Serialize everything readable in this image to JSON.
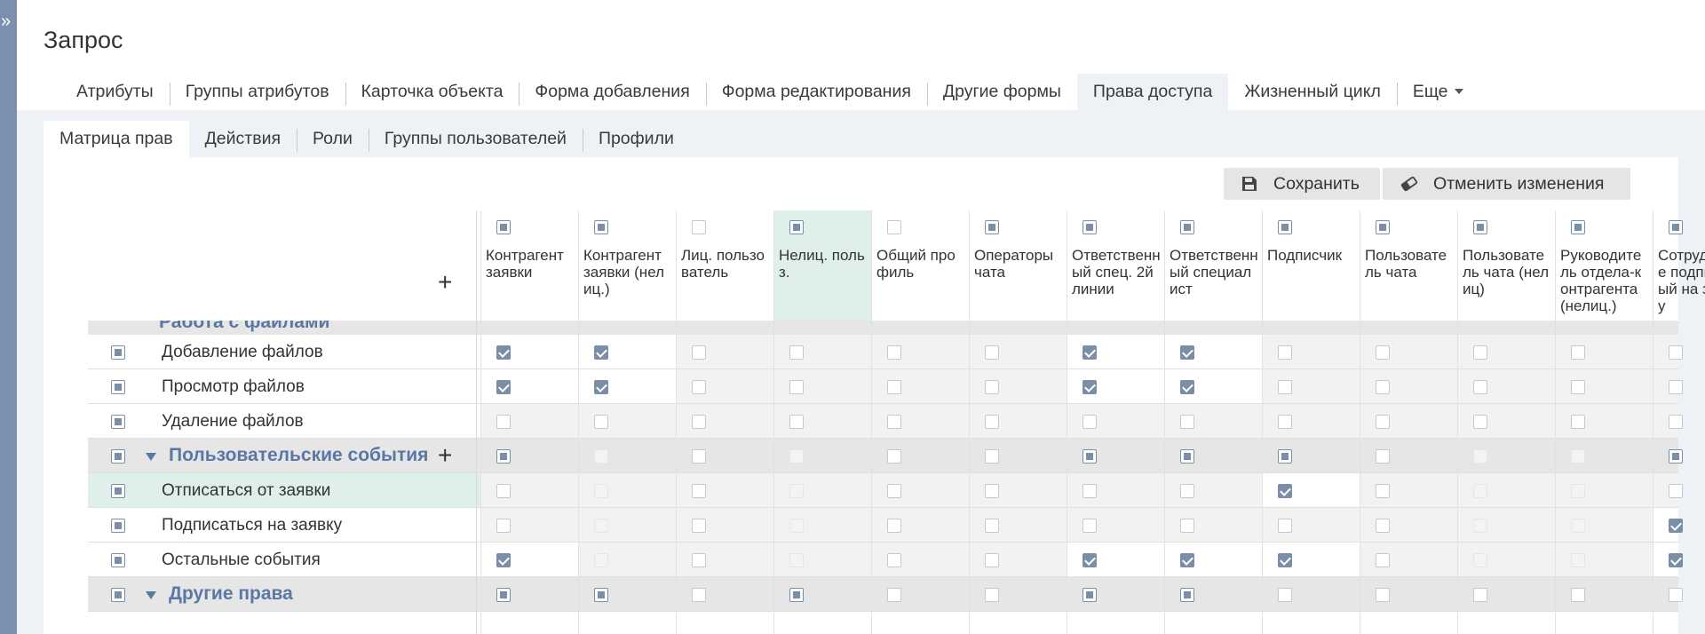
{
  "sidebar": {
    "expand_icon": "double-chevron-right-icon"
  },
  "page": {
    "title": "Запрос"
  },
  "tabs_main": {
    "items": [
      "Атрибуты",
      "Группы атрибутов",
      "Карточка объекта",
      "Форма добавления",
      "Форма редактирования",
      "Другие формы",
      "Права доступа",
      "Жизненный цикл",
      "Еще"
    ],
    "active": "Права доступа"
  },
  "tabs_sub": {
    "items": [
      "Матрица прав",
      "Действия",
      "Роли",
      "Группы пользователей",
      "Профили"
    ],
    "active": "Матрица прав"
  },
  "toolbar": {
    "save_label": "Сохранить",
    "save_icon": "floppy-disk-icon",
    "cancel_label": "Отменить изменения",
    "cancel_icon": "eraser-icon"
  },
  "matrix": {
    "add_icon": "+",
    "columns": [
      {
        "label": "Контрагент заявки",
        "header_state": "ind"
      },
      {
        "label": "Контрагент заявки (нелиц.)",
        "header_state": "ind"
      },
      {
        "label": "Лиц. пользователь",
        "header_state": "off"
      },
      {
        "label": "Нелиц. польз.",
        "header_state": "ind",
        "highlight": true
      },
      {
        "label": "Общий профиль",
        "header_state": "off"
      },
      {
        "label": "Операторы чата",
        "header_state": "ind"
      },
      {
        "label": "Ответственный спец. 2й линии",
        "header_state": "ind"
      },
      {
        "label": "Ответственный специалист",
        "header_state": "ind"
      },
      {
        "label": "Подписчик",
        "header_state": "ind"
      },
      {
        "label": "Пользователь чата",
        "header_state": "ind"
      },
      {
        "label": "Пользователь чата (нелиц)",
        "header_state": "ind"
      },
      {
        "label": "Руководитель отдела-контрагента (нелиц.)",
        "header_state": "ind"
      },
      {
        "label": "Сотрудник не подписанный на заявку",
        "header_state": "ind"
      }
    ],
    "partial_group_label": "Работа с файлами",
    "rows": [
      {
        "type": "item",
        "label": "Добавление файлов",
        "state": "ind",
        "cells": [
          "on",
          "on",
          "off",
          "off",
          "off",
          "off",
          "on",
          "on",
          "off",
          "off",
          "off",
          "off",
          "off"
        ],
        "white": [
          0,
          1,
          6,
          7
        ]
      },
      {
        "type": "item",
        "label": "Просмотр файлов",
        "state": "ind",
        "cells": [
          "on",
          "on",
          "off",
          "off",
          "off",
          "off",
          "on",
          "on",
          "off",
          "off",
          "off",
          "off",
          "off"
        ],
        "white": [
          0,
          1,
          6,
          7
        ]
      },
      {
        "type": "item",
        "label": "Удаление файлов",
        "state": "ind",
        "cells": [
          "off",
          "off",
          "off",
          "off",
          "off",
          "off",
          "off",
          "off",
          "off",
          "off",
          "off",
          "off",
          "off"
        ],
        "white": []
      },
      {
        "type": "group",
        "label": "Пользовательские события",
        "state": "ind",
        "cells": [
          "ind",
          "dis",
          "off",
          "dis",
          "off",
          "off",
          "ind",
          "ind",
          "ind",
          "off",
          "dis",
          "dis",
          "ind"
        ],
        "white": []
      },
      {
        "type": "item",
        "label": "Отписаться от заявки",
        "state": "ind",
        "highlight": true,
        "cells": [
          "off",
          "dis",
          "off",
          "dis",
          "off",
          "off",
          "off",
          "off",
          "on",
          "off",
          "dis",
          "dis",
          "off"
        ],
        "white": [
          8
        ]
      },
      {
        "type": "item",
        "label": "Подписаться на заявку",
        "state": "ind",
        "cells": [
          "off",
          "dis",
          "off",
          "dis",
          "off",
          "off",
          "off",
          "off",
          "off",
          "off",
          "dis",
          "dis",
          "on"
        ],
        "white": [
          12
        ]
      },
      {
        "type": "item",
        "label": "Остальные события",
        "state": "ind",
        "cells": [
          "on",
          "dis",
          "off",
          "dis",
          "off",
          "off",
          "on",
          "on",
          "on",
          "off",
          "dis",
          "dis",
          "on"
        ],
        "white": [
          0,
          6,
          7,
          8,
          12
        ]
      },
      {
        "type": "group",
        "label": "Другие права",
        "state": "ind",
        "cells": [
          "ind",
          "ind",
          "off",
          "ind",
          "off",
          "off",
          "ind",
          "ind",
          "off",
          "off",
          "off",
          "off",
          "off"
        ],
        "white": []
      }
    ]
  }
}
